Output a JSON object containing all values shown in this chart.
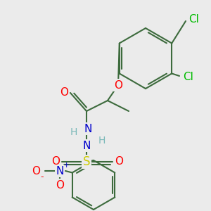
{
  "background_color": "#ebebeb",
  "bond_color": "#3d6b3d",
  "figsize": [
    3.0,
    3.0
  ],
  "dpi": 100,
  "colors": {
    "bond": "#3d6b3d",
    "O": "#ff0000",
    "N": "#0000cc",
    "S": "#cccc00",
    "Cl": "#00bb00",
    "H": "#7ab8b8",
    "charge_plus": "#0000cc",
    "charge_minus": "#ff0000"
  }
}
